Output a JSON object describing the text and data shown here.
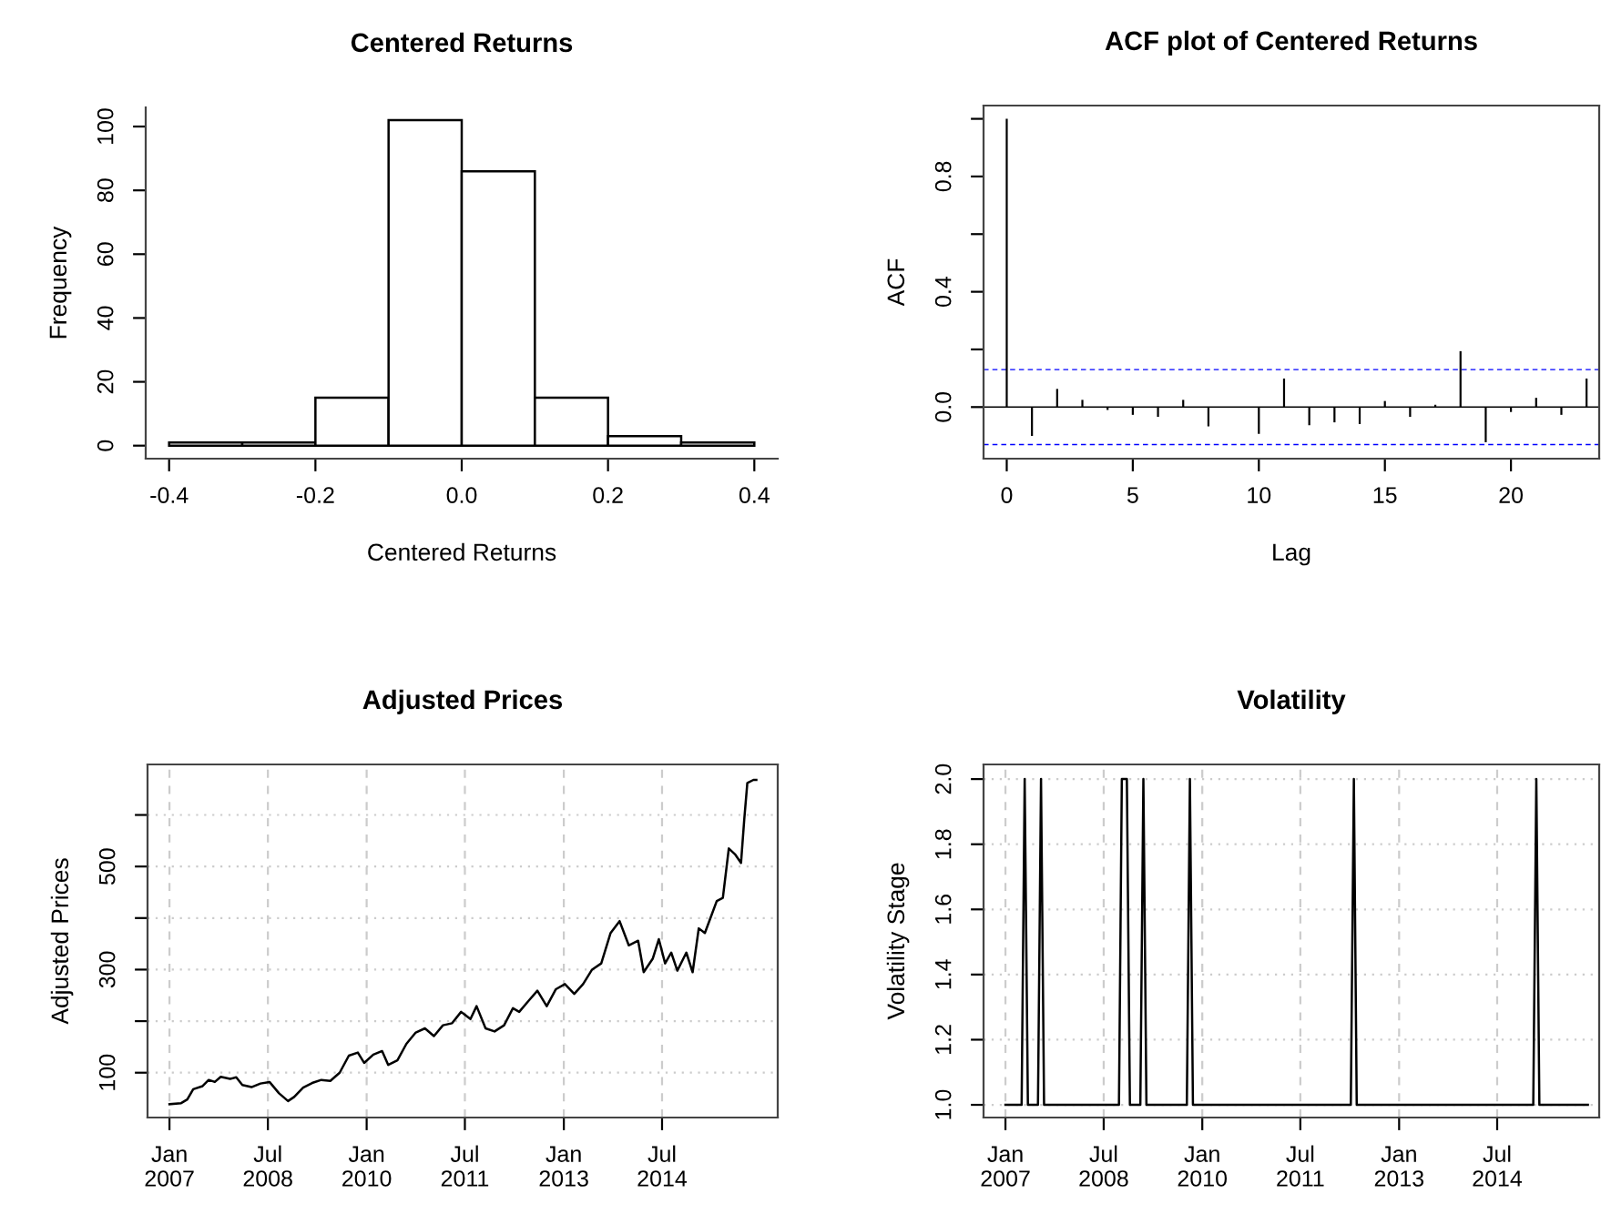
{
  "chart_data": [
    {
      "type": "histogram",
      "title": "Centered Returns",
      "xlabel": "Centered Returns",
      "ylabel": "Frequency",
      "color": "#ffffff",
      "bins": [
        -0.4,
        -0.3,
        -0.2,
        -0.1,
        0.0,
        0.1,
        0.2,
        0.3,
        0.4
      ],
      "values": [
        1,
        1,
        15,
        102,
        86,
        15,
        3,
        1
      ],
      "xlim": [
        -0.432,
        0.432
      ],
      "ylim": [
        -4.08,
        106
      ],
      "xticks": [
        {
          "value": -0.4,
          "label": "-0.4"
        },
        {
          "value": -0.2,
          "label": "-0.2"
        },
        {
          "value": 0,
          "label": "0.0"
        },
        {
          "value": 0.2,
          "label": "0.2"
        },
        {
          "value": 0.4,
          "label": "0.4"
        }
      ],
      "yticks": [
        0,
        20,
        40,
        60,
        80,
        100
      ],
      "grid": false
    },
    {
      "type": "bar",
      "title": "ACF plot of Centered Returns",
      "xlabel": "Lag",
      "ylabel": "ACF",
      "color": "#000000",
      "x": [
        0,
        1,
        2,
        3,
        4,
        5,
        6,
        7,
        8,
        9,
        10,
        11,
        12,
        13,
        14,
        15,
        16,
        17,
        18,
        19,
        20,
        21,
        22,
        23
      ],
      "values": [
        1.0,
        -0.1,
        0.063,
        0.025,
        -0.01,
        -0.027,
        -0.034,
        0.025,
        -0.067,
        -0.002,
        -0.093,
        0.099,
        -0.063,
        -0.053,
        -0.059,
        0.021,
        -0.034,
        0.008,
        0.194,
        -0.122,
        -0.017,
        0.032,
        -0.027,
        0.099
      ],
      "xlim": [
        -0.92,
        23.5
      ],
      "ylim": [
        -0.179,
        1.046
      ],
      "xticks": [
        0,
        5,
        10,
        15,
        20
      ],
      "yticks": [
        {
          "value": 0,
          "label": "0.0"
        },
        {
          "value": 0.2,
          "label": null
        },
        {
          "value": 0.4,
          "label": "0.4"
        },
        {
          "value": 0.6,
          "label": null
        },
        {
          "value": 0.8,
          "label": "0.8"
        },
        {
          "value": 1.0,
          "label": null
        }
      ],
      "grid": false,
      "ref_lines": [
        {
          "axis": "y",
          "value": 0,
          "color": "#000000",
          "line_style": "solid"
        },
        {
          "axis": "y",
          "value": 0.13,
          "color": "#0000ff",
          "line_style": "dashed"
        },
        {
          "axis": "y",
          "value": -0.13,
          "color": "#0000ff",
          "line_style": "dashed"
        }
      ]
    },
    {
      "type": "line",
      "title": "Adjusted Prices",
      "ylabel": "Adjusted Prices",
      "color": "#000000",
      "x": [
        "2007-01-01",
        "2007-03-07",
        "2007-04-10",
        "2007-05-13",
        "2007-07-04",
        "2007-08-07",
        "2007-09-10",
        "2007-10-13",
        "2007-12-04",
        "2008-01-07",
        "2008-02-10",
        "2008-04-01",
        "2008-05-21",
        "2008-07-10",
        "2008-09-01",
        "2008-10-21",
        "2008-11-24",
        "2009-01-13",
        "2009-03-04",
        "2009-04-24",
        "2009-06-13",
        "2009-08-04",
        "2009-09-24",
        "2009-11-13",
        "2009-12-18",
        "2010-02-07",
        "2010-03-28",
        "2010-05-01",
        "2010-06-21",
        "2010-08-10",
        "2010-10-01",
        "2010-11-21",
        "2011-01-10",
        "2011-03-01",
        "2011-04-21",
        "2011-06-10",
        "2011-08-01",
        "2011-09-04",
        "2011-10-24",
        "2011-12-13",
        "2012-02-04",
        "2012-03-24",
        "2012-04-28",
        "2012-06-18",
        "2012-08-07",
        "2012-09-28",
        "2012-11-18",
        "2013-01-07",
        "2013-02-28",
        "2013-04-18",
        "2013-06-07",
        "2013-07-28",
        "2013-09-18",
        "2013-11-07",
        "2013-12-28",
        "2014-02-18",
        "2014-03-21",
        "2014-05-10",
        "2014-06-13",
        "2014-07-18",
        "2014-08-21",
        "2014-09-24",
        "2014-11-13",
        "2014-12-18",
        "2015-01-21",
        "2015-02-24",
        "2015-03-28",
        "2015-05-01",
        "2015-06-04",
        "2015-07-07",
        "2015-08-10",
        "2015-09-13",
        "2015-10-01",
        "2015-10-18",
        "2015-11-21",
        "2015-12-07"
      ],
      "values": [
        39,
        41,
        48,
        68,
        74,
        86,
        82,
        92,
        88,
        91,
        76,
        72,
        79,
        82,
        60,
        45,
        53,
        71,
        80,
        86,
        84,
        100,
        133,
        139,
        119,
        135,
        142,
        115,
        124,
        156,
        178,
        186,
        171,
        192,
        196,
        218,
        204,
        229,
        186,
        180,
        192,
        225,
        218,
        239,
        259,
        229,
        262,
        272,
        253,
        272,
        300,
        312,
        371,
        394,
        347,
        356,
        295,
        321,
        359,
        312,
        333,
        298,
        333,
        295,
        380,
        371,
        401,
        433,
        439,
        535,
        524,
        507,
        592,
        662,
        668,
        668
      ],
      "xlim": [
        "2006-09-01",
        "2016-04-04"
      ],
      "ylim": [
        13,
        698
      ],
      "xticks": [
        {
          "value": "2007-01-01",
          "label": "Jan\n2007"
        },
        {
          "value": "2008-07-01",
          "label": "Jul\n2008"
        },
        {
          "value": "2010-01-01",
          "label": "Jan\n2010"
        },
        {
          "value": "2011-07-01",
          "label": "Jul\n2011"
        },
        {
          "value": "2013-01-01",
          "label": "Jan\n2013"
        },
        {
          "value": "2014-07-01",
          "label": "Jul\n2014"
        }
      ],
      "yticks": [
        100,
        {
          "value": 200,
          "label": null
        },
        300,
        {
          "value": 400,
          "label": null
        },
        500,
        {
          "value": 600,
          "label": null
        }
      ],
      "grid": true
    },
    {
      "type": "line",
      "title": "Volatility",
      "ylabel": "Volatility Stage",
      "color": "#000000",
      "x": [
        "2007-01-01",
        "2007-04-01",
        "2007-04-18",
        "2007-05-06",
        "2007-07-01",
        "2007-07-18",
        "2007-08-04",
        "2008-09-24",
        "2008-10-10",
        "2008-11-07",
        "2008-11-24",
        "2009-01-21",
        "2009-02-07",
        "2009-02-24",
        "2009-10-07",
        "2009-10-24",
        "2009-11-10",
        "2012-04-07",
        "2012-04-24",
        "2012-05-10",
        "2015-01-18",
        "2015-02-04",
        "2015-02-21",
        "2015-11-18"
      ],
      "values": [
        1,
        1,
        2,
        1,
        1,
        2,
        1,
        1,
        2,
        2,
        1,
        1,
        2,
        1,
        1,
        2,
        1,
        1,
        2,
        1,
        1,
        2,
        1,
        1
      ],
      "xlim": [
        "2006-09-01",
        "2016-01-20"
      ],
      "ylim": [
        0.961,
        2.045
      ],
      "xticks": [
        {
          "value": "2007-01-01",
          "label": "Jan\n2007"
        },
        {
          "value": "2008-07-01",
          "label": "Jul\n2008"
        },
        {
          "value": "2010-01-01",
          "label": "Jan\n2010"
        },
        {
          "value": "2011-07-01",
          "label": "Jul\n2011"
        },
        {
          "value": "2013-01-01",
          "label": "Jan\n2013"
        },
        {
          "value": "2014-07-01",
          "label": "Jul\n2014"
        }
      ],
      "yticks": [
        {
          "value": 1,
          "label": "1.0"
        },
        {
          "value": 1.2,
          "label": "1.2"
        },
        {
          "value": 1.4,
          "label": "1.4"
        },
        {
          "value": 1.6,
          "label": "1.6"
        },
        {
          "value": 1.8,
          "label": "1.8"
        },
        {
          "value": 2,
          "label": "2.0"
        }
      ],
      "grid": true
    }
  ]
}
